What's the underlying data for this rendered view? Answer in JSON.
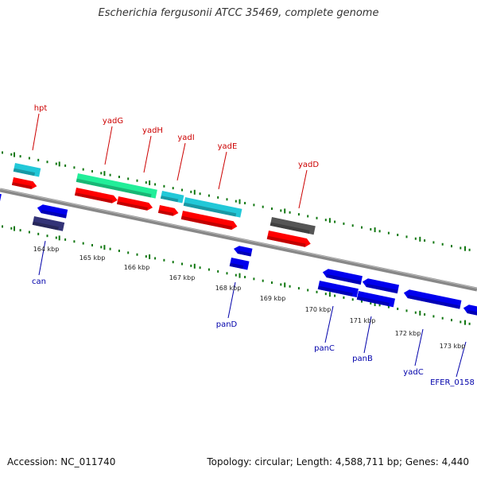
{
  "header": {
    "title": "Escherichia fergusonii ATCC 35469, complete genome"
  },
  "footer": {
    "accession": "Accession: NC_011740",
    "stats": "Topology: circular; Length: 4,588,711 bp; Genes: 4,440"
  },
  "colors": {
    "forward_label": "#cc0000",
    "reverse_label": "#0000aa",
    "cds_red": "#ff0000",
    "cds_blue": "#0000ee",
    "gene_cyan": "#22c8d8",
    "gene_green": "#22ee99",
    "gene_dark": "#555555",
    "gene_navy": "#333377",
    "ticks_green": "#117711",
    "backbone": "#888888"
  },
  "forward_genes": [
    {
      "name": "hpt"
    },
    {
      "name": "yadG"
    },
    {
      "name": "yadH"
    },
    {
      "name": "yadI"
    },
    {
      "name": "yadE"
    },
    {
      "name": "yadD"
    }
  ],
  "reverse_genes": [
    {
      "name": "can"
    },
    {
      "name": "panD"
    },
    {
      "name": "panC"
    },
    {
      "name": "panB"
    },
    {
      "name": "yadC"
    },
    {
      "name": "EFER_0158"
    }
  ],
  "scale": {
    "unit": "kbp",
    "labels": [
      "164 kbp",
      "165 kbp",
      "166 kbp",
      "167 kbp",
      "168 kbp",
      "169 kbp",
      "170 kbp",
      "171 kbp",
      "172 kbp",
      "173 kbp"
    ]
  }
}
